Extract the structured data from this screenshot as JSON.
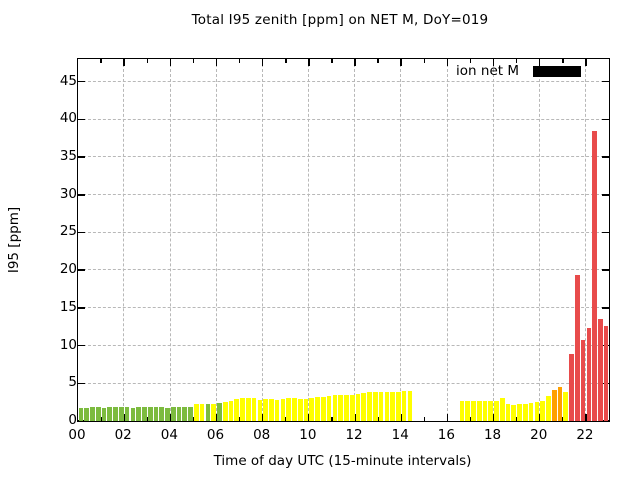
{
  "title": "Total I95 zenith [ppm] on NET M, DoY=019",
  "legend": {
    "label": "ion net M",
    "swatch_color": "#000000"
  },
  "axes": {
    "x_label": "Time of day UTC (15-minute intervals)",
    "y_label": "I95 [ppm]"
  },
  "chart_data": {
    "type": "bar",
    "title": "Total I95 zenith [ppm] on NET M, DoY=019",
    "xlabel": "Time of day UTC (15-minute intervals)",
    "ylabel": "I95 [ppm]",
    "xlim_hours": [
      0,
      23
    ],
    "ylim": [
      0,
      48
    ],
    "interval_minutes": 15,
    "grid": true,
    "legend_position": "top-right-inside",
    "legend_entries": [
      {
        "name": "ion net M",
        "color": "#000000"
      }
    ],
    "x_major_tick_hours": [
      0,
      2,
      4,
      6,
      8,
      10,
      12,
      14,
      16,
      18,
      20,
      22
    ],
    "x_tick_labels": [
      "00",
      "02",
      "04",
      "06",
      "08",
      "10",
      "12",
      "14",
      "16",
      "18",
      "20",
      "22"
    ],
    "x_minor_tick_hours": [
      1,
      3,
      5,
      7,
      9,
      11,
      13,
      15,
      17,
      19,
      21
    ],
    "y_ticks": [
      0,
      5,
      10,
      15,
      20,
      25,
      30,
      35,
      40,
      45
    ],
    "gap_no_data": {
      "from": "14:30",
      "to": "16:15"
    },
    "colors": {
      "green": "#7cbb3f",
      "yellow": "#ffff00",
      "orange": "#ffa000",
      "red": "#e84b4b"
    },
    "bars": [
      {
        "time": "00:00",
        "value": 1.7,
        "color": "green"
      },
      {
        "time": "00:15",
        "value": 1.75,
        "color": "green"
      },
      {
        "time": "00:30",
        "value": 1.8,
        "color": "green"
      },
      {
        "time": "00:45",
        "value": 1.8,
        "color": "green"
      },
      {
        "time": "01:00",
        "value": 1.75,
        "color": "green"
      },
      {
        "time": "01:15",
        "value": 1.8,
        "color": "green"
      },
      {
        "time": "01:30",
        "value": 1.8,
        "color": "green"
      },
      {
        "time": "01:45",
        "value": 1.85,
        "color": "green"
      },
      {
        "time": "02:00",
        "value": 1.8,
        "color": "green"
      },
      {
        "time": "02:15",
        "value": 1.75,
        "color": "green"
      },
      {
        "time": "02:30",
        "value": 1.8,
        "color": "green"
      },
      {
        "time": "02:45",
        "value": 1.8,
        "color": "green"
      },
      {
        "time": "03:00",
        "value": 1.85,
        "color": "green"
      },
      {
        "time": "03:15",
        "value": 1.8,
        "color": "green"
      },
      {
        "time": "03:30",
        "value": 1.8,
        "color": "green"
      },
      {
        "time": "03:45",
        "value": 1.75,
        "color": "green"
      },
      {
        "time": "04:00",
        "value": 1.8,
        "color": "green"
      },
      {
        "time": "04:15",
        "value": 1.85,
        "color": "green"
      },
      {
        "time": "04:30",
        "value": 1.8,
        "color": "green"
      },
      {
        "time": "04:45",
        "value": 1.8,
        "color": "green"
      },
      {
        "time": "05:00",
        "value": 2.2,
        "color": "yellow"
      },
      {
        "time": "05:15",
        "value": 2.2,
        "color": "yellow"
      },
      {
        "time": "05:30",
        "value": 2.3,
        "color": "green"
      },
      {
        "time": "05:45",
        "value": 2.2,
        "color": "yellow"
      },
      {
        "time": "06:00",
        "value": 2.4,
        "color": "green"
      },
      {
        "time": "06:15",
        "value": 2.5,
        "color": "yellow"
      },
      {
        "time": "06:30",
        "value": 2.7,
        "color": "yellow"
      },
      {
        "time": "06:45",
        "value": 2.9,
        "color": "yellow"
      },
      {
        "time": "07:00",
        "value": 3.0,
        "color": "yellow"
      },
      {
        "time": "07:15",
        "value": 3.1,
        "color": "yellow"
      },
      {
        "time": "07:30",
        "value": 3.0,
        "color": "yellow"
      },
      {
        "time": "07:45",
        "value": 2.8,
        "color": "yellow"
      },
      {
        "time": "08:00",
        "value": 2.9,
        "color": "yellow"
      },
      {
        "time": "08:15",
        "value": 2.9,
        "color": "yellow"
      },
      {
        "time": "08:30",
        "value": 2.8,
        "color": "yellow"
      },
      {
        "time": "08:45",
        "value": 2.9,
        "color": "yellow"
      },
      {
        "time": "09:00",
        "value": 3.0,
        "color": "yellow"
      },
      {
        "time": "09:15",
        "value": 3.0,
        "color": "yellow"
      },
      {
        "time": "09:30",
        "value": 2.9,
        "color": "yellow"
      },
      {
        "time": "09:45",
        "value": 2.9,
        "color": "yellow"
      },
      {
        "time": "10:00",
        "value": 3.1,
        "color": "yellow"
      },
      {
        "time": "10:15",
        "value": 3.2,
        "color": "yellow"
      },
      {
        "time": "10:30",
        "value": 3.2,
        "color": "yellow"
      },
      {
        "time": "10:45",
        "value": 3.3,
        "color": "yellow"
      },
      {
        "time": "11:00",
        "value": 3.4,
        "color": "yellow"
      },
      {
        "time": "11:15",
        "value": 3.5,
        "color": "yellow"
      },
      {
        "time": "11:30",
        "value": 3.5,
        "color": "yellow"
      },
      {
        "time": "11:45",
        "value": 3.5,
        "color": "yellow"
      },
      {
        "time": "12:00",
        "value": 3.6,
        "color": "yellow"
      },
      {
        "time": "12:15",
        "value": 3.7,
        "color": "yellow"
      },
      {
        "time": "12:30",
        "value": 3.8,
        "color": "yellow"
      },
      {
        "time": "12:45",
        "value": 3.9,
        "color": "yellow"
      },
      {
        "time": "13:00",
        "value": 3.9,
        "color": "yellow"
      },
      {
        "time": "13:15",
        "value": 3.9,
        "color": "yellow"
      },
      {
        "time": "13:30",
        "value": 3.9,
        "color": "yellow"
      },
      {
        "time": "13:45",
        "value": 3.9,
        "color": "yellow"
      },
      {
        "time": "14:00",
        "value": 4.0,
        "color": "yellow"
      },
      {
        "time": "14:15",
        "value": 4.0,
        "color": "yellow"
      },
      {
        "time": "16:30",
        "value": 2.6,
        "color": "yellow"
      },
      {
        "time": "16:45",
        "value": 2.65,
        "color": "yellow"
      },
      {
        "time": "17:00",
        "value": 2.7,
        "color": "yellow"
      },
      {
        "time": "17:15",
        "value": 2.7,
        "color": "yellow"
      },
      {
        "time": "17:30",
        "value": 2.65,
        "color": "yellow"
      },
      {
        "time": "17:45",
        "value": 2.7,
        "color": "yellow"
      },
      {
        "time": "18:00",
        "value": 2.7,
        "color": "yellow"
      },
      {
        "time": "18:15",
        "value": 3.0,
        "color": "yellow"
      },
      {
        "time": "18:30",
        "value": 2.2,
        "color": "yellow"
      },
      {
        "time": "18:45",
        "value": 2.1,
        "color": "yellow"
      },
      {
        "time": "19:00",
        "value": 2.2,
        "color": "yellow"
      },
      {
        "time": "19:15",
        "value": 2.3,
        "color": "yellow"
      },
      {
        "time": "19:30",
        "value": 2.4,
        "color": "yellow"
      },
      {
        "time": "19:45",
        "value": 2.5,
        "color": "yellow"
      },
      {
        "time": "20:00",
        "value": 2.65,
        "color": "yellow"
      },
      {
        "time": "20:15",
        "value": 3.3,
        "color": "yellow"
      },
      {
        "time": "20:30",
        "value": 4.1,
        "color": "orange"
      },
      {
        "time": "20:45",
        "value": 4.5,
        "color": "orange"
      },
      {
        "time": "21:00",
        "value": 3.9,
        "color": "yellow"
      },
      {
        "time": "21:15",
        "value": 8.9,
        "color": "red"
      },
      {
        "time": "21:30",
        "value": 19.3,
        "color": "red"
      },
      {
        "time": "21:45",
        "value": 10.7,
        "color": "red"
      },
      {
        "time": "22:00",
        "value": 12.3,
        "color": "red"
      },
      {
        "time": "22:15",
        "value": 38.5,
        "color": "red"
      },
      {
        "time": "22:30",
        "value": 13.5,
        "color": "red"
      },
      {
        "time": "22:45",
        "value": 12.6,
        "color": "red"
      }
    ]
  }
}
